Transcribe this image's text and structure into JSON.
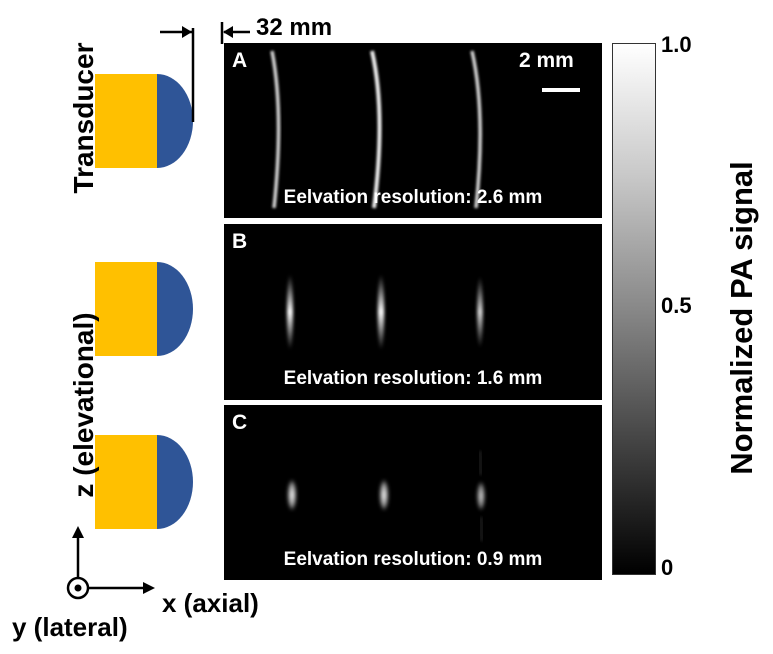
{
  "dimension_label": "32 mm",
  "transducer_label": "Transducer",
  "z_axis_label": "z (elevational)",
  "x_axis_label": "x (axial)",
  "y_axis_label": "y (lateral)",
  "scale_bar_label": "2 mm",
  "panels": [
    {
      "letter": "A",
      "caption": "Eelvation resolution: 2.6 mm"
    },
    {
      "letter": "B",
      "caption": "Eelvation resolution: 1.6 mm"
    },
    {
      "letter": "C",
      "caption": "Eelvation resolution: 0.9 mm"
    }
  ],
  "colorbar": {
    "title": "Normalized PA signal",
    "ticks": [
      "1.0",
      "0.5",
      "0"
    ]
  },
  "colors": {
    "transducer_body": "#FFC000",
    "transducer_lens": "#2F5597",
    "panel_background": "#000000"
  }
}
